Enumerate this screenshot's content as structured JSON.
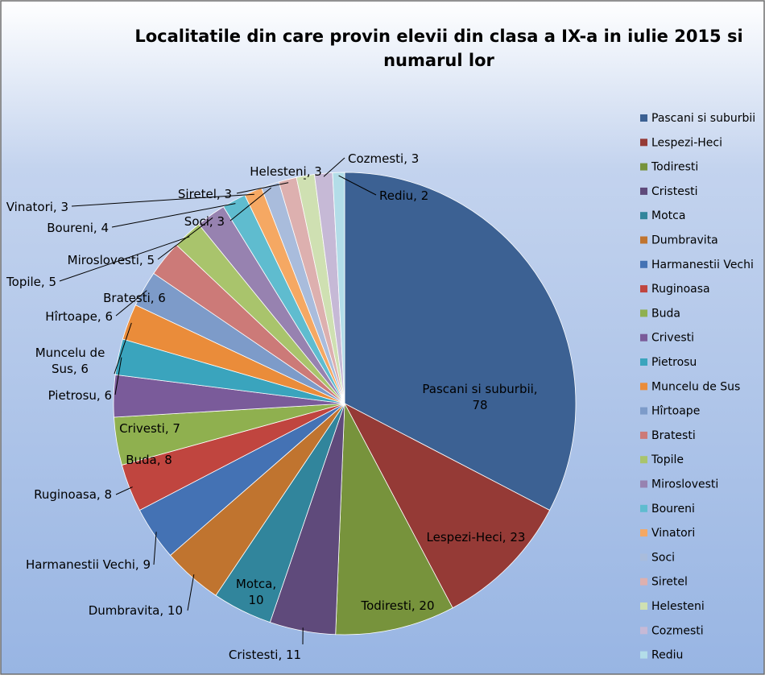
{
  "chart_data": {
    "type": "pie",
    "title": "Localitatile din care provin elevii din clasa a IX-a in iulie 2015 si numarul lor",
    "title_lines": [
      "Localitatile din care provin elevii din clasa a IX-a in iulie 2015 si",
      "numarul lor"
    ],
    "legend_position": "right",
    "slices": [
      {
        "label": "Pascani si suburbii",
        "value": 78,
        "color": "#3c6193",
        "data_label": "Pascani si suburbii, 78"
      },
      {
        "label": "Lespezi-Heci",
        "value": 23,
        "color": "#953a36",
        "data_label": "Lespezi-Heci, 23"
      },
      {
        "label": "Todiresti",
        "value": 20,
        "color": "#77933c",
        "data_label": "Todiresti, 20"
      },
      {
        "label": "Cristesti",
        "value": 11,
        "color": "#5f4a7b",
        "data_label": "Cristesti, 11"
      },
      {
        "label": "Motca",
        "value": 10,
        "color": "#31859c",
        "data_label": "Motca, 10"
      },
      {
        "label": "Dumbravita",
        "value": 10,
        "color": "#c0742f",
        "data_label": "Dumbravita, 10"
      },
      {
        "label": "Harmanestii Vechi",
        "value": 9,
        "color": "#4472b4",
        "data_label": "Harmanestii Vechi, 9"
      },
      {
        "label": "Ruginoasa",
        "value": 8,
        "color": "#c0453f",
        "data_label": "Ruginoasa, 8"
      },
      {
        "label": "Buda",
        "value": 8,
        "color": "#8fb04f",
        "data_label": "Buda, 8"
      },
      {
        "label": "Crivesti",
        "value": 7,
        "color": "#7a5b9a",
        "data_label": "Crivesti, 7"
      },
      {
        "label": "Pietrosu",
        "value": 6,
        "color": "#3aa4bd",
        "data_label": "Pietrosu, 6"
      },
      {
        "label": "Muncelu de Sus",
        "value": 6,
        "color": "#ea8c3a",
        "data_label": "Muncelu de Sus, 6"
      },
      {
        "label": "Hîrtoape",
        "value": 6,
        "color": "#7d9bc9",
        "data_label": "Hîrtoape, 6"
      },
      {
        "label": "Bratesti",
        "value": 6,
        "color": "#cc7a78",
        "data_label": "Bratesti, 6"
      },
      {
        "label": "Topile",
        "value": 5,
        "color": "#a9c46c",
        "data_label": "Topile, 5"
      },
      {
        "label": "Miroslovesti",
        "value": 5,
        "color": "#9782b0",
        "data_label": "Miroslovesti, 5"
      },
      {
        "label": "Boureni",
        "value": 4,
        "color": "#5fbccf",
        "data_label": "Boureni, 4"
      },
      {
        "label": "Vinatori",
        "value": 3,
        "color": "#f5a863",
        "data_label": "Vinatori, 3"
      },
      {
        "label": "Soci",
        "value": 3,
        "color": "#a9bcdc",
        "data_label": "Soci, 3"
      },
      {
        "label": "Siretel",
        "value": 3,
        "color": "#ddb0af",
        "data_label": "Siretel, 3"
      },
      {
        "label": "Helesteni",
        "value": 3,
        "color": "#cfe0b2",
        "data_label": "Helesteni, 3"
      },
      {
        "label": "Cozmesti",
        "value": 3,
        "color": "#c6b9d6",
        "data_label": "Cozmesti, 3"
      },
      {
        "label": "Rediu",
        "value": 2,
        "color": "#b3dde8",
        "data_label": "Rediu, 2"
      }
    ]
  }
}
